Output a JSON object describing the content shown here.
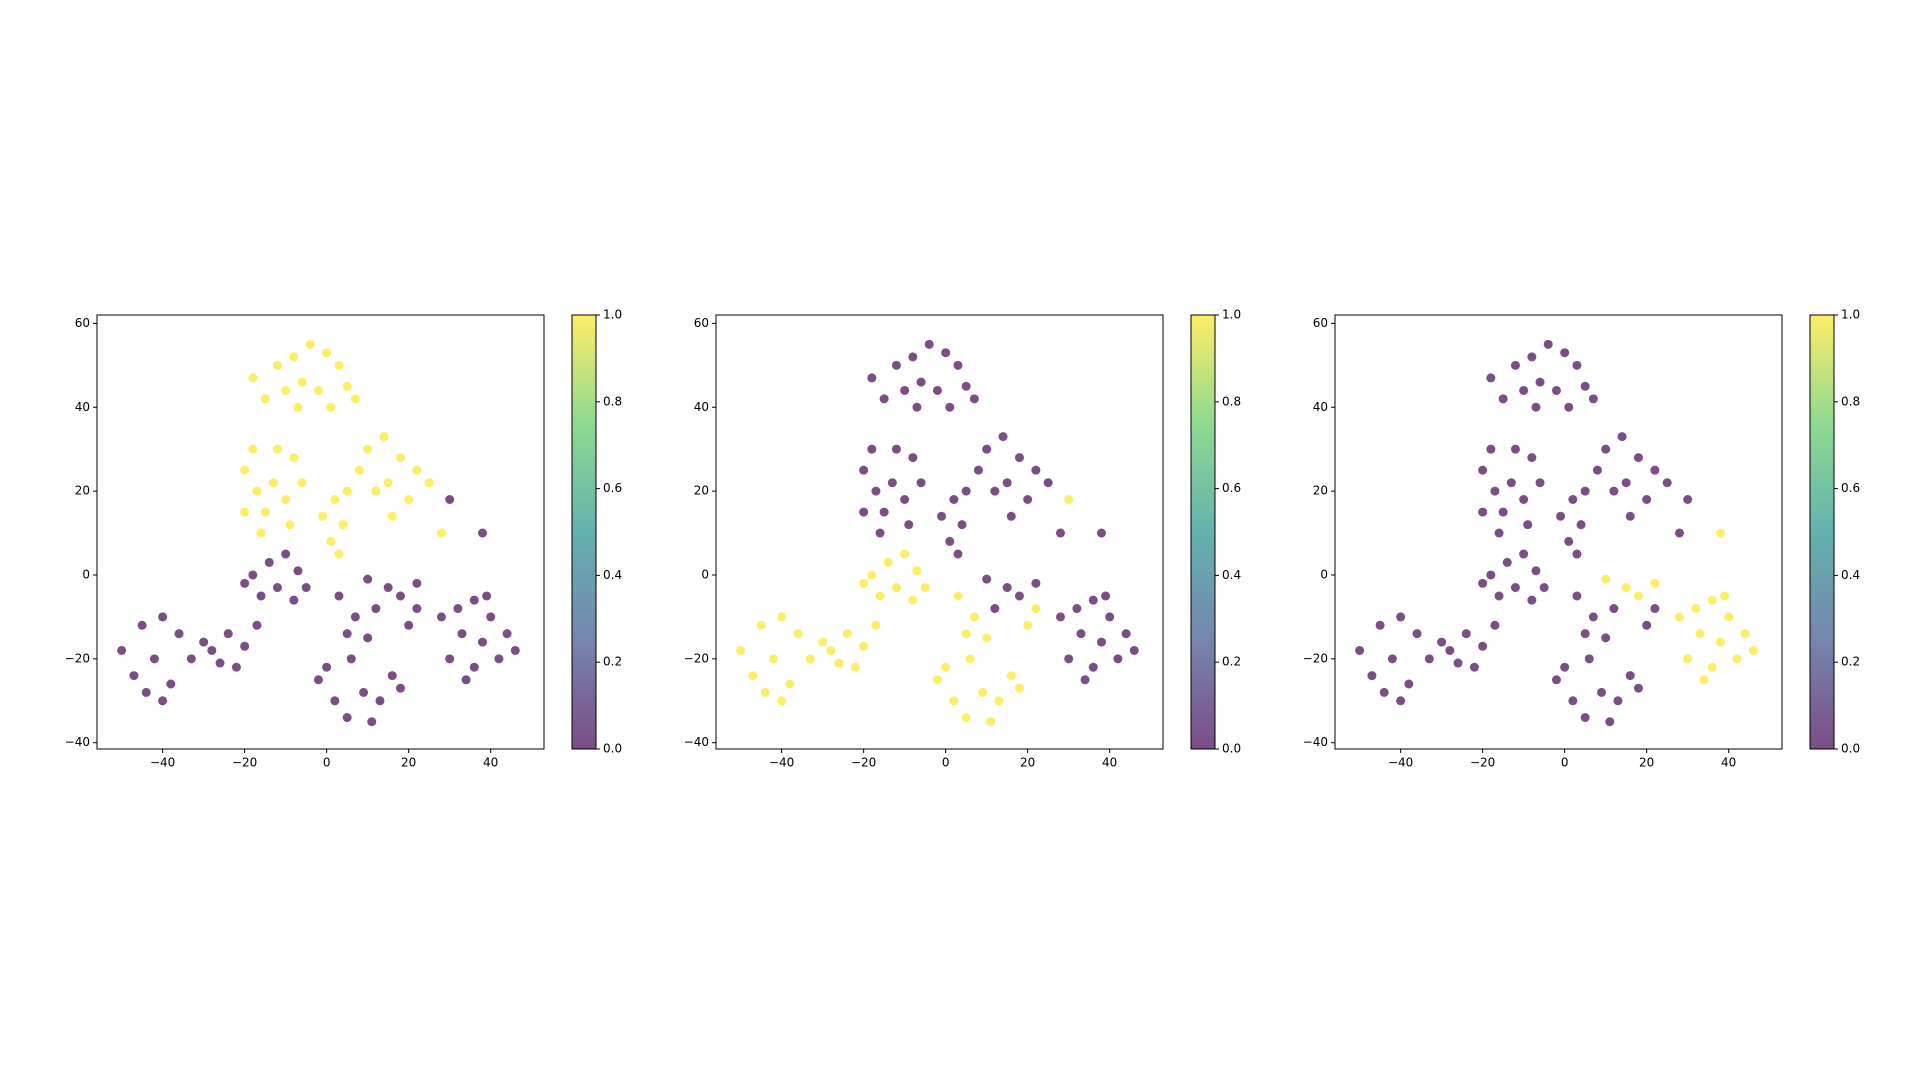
{
  "chart_data": [
    {
      "type": "scatter",
      "x": [
        -12,
        -8,
        -4,
        0,
        3,
        -6,
        -10,
        -15,
        -2,
        5,
        -18,
        1,
        -7,
        7,
        -20,
        -17,
        -13,
        -10,
        -15,
        -8,
        -18,
        -12,
        -20,
        -6,
        -9,
        -16,
        10,
        14,
        18,
        22,
        15,
        12,
        20,
        25,
        16,
        8,
        2,
        5,
        -1,
        4,
        1,
        3,
        -18,
        -14,
        -10,
        -7,
        -12,
        -16,
        -8,
        -20,
        -5,
        -50,
        -45,
        -40,
        -36,
        -42,
        -47,
        -38,
        -33,
        -44,
        -30,
        -40,
        -28,
        -24,
        -20,
        -17,
        -22,
        -26,
        -2,
        2,
        5,
        9,
        13,
        16,
        0,
        6,
        11,
        18,
        3,
        7,
        12,
        15,
        20,
        10,
        5,
        18,
        22,
        10,
        22,
        28,
        32,
        36,
        40,
        44,
        46,
        38,
        33,
        30,
        36,
        42,
        34,
        39,
        38,
        30,
        28
      ],
      "y": [
        50,
        52,
        55,
        53,
        50,
        46,
        44,
        42,
        44,
        45,
        47,
        40,
        40,
        42,
        25,
        20,
        22,
        18,
        15,
        28,
        30,
        30,
        15,
        22,
        12,
        10,
        30,
        33,
        28,
        25,
        22,
        20,
        18,
        22,
        14,
        25,
        18,
        20,
        14,
        12,
        8,
        5,
        0,
        3,
        5,
        1,
        -3,
        -5,
        -6,
        -2,
        -3,
        -18,
        -12,
        -10,
        -14,
        -20,
        -24,
        -26,
        -20,
        -28,
        -16,
        -30,
        -18,
        -14,
        -17,
        -12,
        -22,
        -21,
        -25,
        -30,
        -34,
        -28,
        -30,
        -24,
        -22,
        -20,
        -35,
        -27,
        -5,
        -10,
        -8,
        -3,
        -12,
        -15,
        -14,
        -5,
        -8,
        -1,
        -2,
        -10,
        -8,
        -6,
        -10,
        -14,
        -18,
        -16,
        -14,
        -20,
        -22,
        -20,
        -25,
        -5,
        10,
        18,
        10
      ],
      "c": [
        1,
        1,
        1,
        1,
        1,
        1,
        1,
        1,
        1,
        1,
        1,
        1,
        1,
        1,
        1,
        1,
        1,
        1,
        1,
        1,
        1,
        1,
        1,
        1,
        1,
        1,
        1,
        1,
        1,
        1,
        1,
        1,
        1,
        1,
        1,
        1,
        1,
        1,
        1,
        1,
        1,
        1,
        0,
        0,
        0,
        0,
        0,
        0,
        0,
        0,
        0,
        0,
        0,
        0,
        0,
        0,
        0,
        0,
        0,
        0,
        0,
        0,
        0,
        0,
        0,
        0,
        0,
        0,
        0,
        0,
        0,
        0,
        0,
        0,
        0,
        0,
        0,
        0,
        0,
        0,
        0,
        0,
        0,
        0,
        0,
        0,
        0,
        0,
        0,
        0,
        0,
        0,
        0,
        0,
        0,
        0,
        0,
        0,
        0,
        0,
        0,
        0,
        0,
        0,
        1
      ],
      "xlim": [
        -56,
        53
      ],
      "ylim": [
        -41.5,
        62
      ],
      "xticks": [
        {
          "value": -40,
          "label": "−40"
        },
        {
          "value": -20,
          "label": "−20"
        },
        0,
        20,
        40
      ],
      "yticks": [
        {
          "value": -40,
          "label": "−40"
        },
        {
          "value": -20,
          "label": "−20"
        },
        0,
        20,
        40,
        60
      ],
      "clim": [
        0,
        1
      ],
      "cticks": [
        {
          "value": 0,
          "label": "0.0"
        },
        {
          "value": 0.2,
          "label": "0.2"
        },
        {
          "value": 0.4,
          "label": "0.4"
        },
        {
          "value": 0.6,
          "label": "0.6"
        },
        {
          "value": 0.8,
          "label": "0.8"
        },
        {
          "value": 1,
          "label": "1.0"
        }
      ],
      "colormap": [
        "#440154",
        "#3b528b",
        "#21918c",
        "#5ec962",
        "#fde725"
      ],
      "alpha": 0.7
    },
    {
      "type": "scatter",
      "x": [
        -12,
        -8,
        -4,
        0,
        3,
        -6,
        -10,
        -15,
        -2,
        5,
        -18,
        1,
        -7,
        7,
        -20,
        -17,
        -13,
        -10,
        -15,
        -8,
        -18,
        -12,
        -20,
        -6,
        -9,
        -16,
        10,
        14,
        18,
        22,
        15,
        12,
        20,
        25,
        16,
        8,
        2,
        5,
        -1,
        4,
        1,
        3,
        -18,
        -14,
        -10,
        -7,
        -12,
        -16,
        -8,
        -20,
        -5,
        -50,
        -45,
        -40,
        -36,
        -42,
        -47,
        -38,
        -33,
        -44,
        -30,
        -40,
        -28,
        -24,
        -20,
        -17,
        -22,
        -26,
        -2,
        2,
        5,
        9,
        13,
        16,
        0,
        6,
        11,
        18,
        3,
        7,
        12,
        15,
        20,
        10,
        5,
        18,
        22,
        10,
        22,
        28,
        32,
        36,
        40,
        44,
        46,
        38,
        33,
        30,
        36,
        42,
        34,
        39,
        38,
        30,
        28
      ],
      "y": [
        50,
        52,
        55,
        53,
        50,
        46,
        44,
        42,
        44,
        45,
        47,
        40,
        40,
        42,
        25,
        20,
        22,
        18,
        15,
        28,
        30,
        30,
        15,
        22,
        12,
        10,
        30,
        33,
        28,
        25,
        22,
        20,
        18,
        22,
        14,
        25,
        18,
        20,
        14,
        12,
        8,
        5,
        0,
        3,
        5,
        1,
        -3,
        -5,
        -6,
        -2,
        -3,
        -18,
        -12,
        -10,
        -14,
        -20,
        -24,
        -26,
        -20,
        -28,
        -16,
        -30,
        -18,
        -14,
        -17,
        -12,
        -22,
        -21,
        -25,
        -30,
        -34,
        -28,
        -30,
        -24,
        -22,
        -20,
        -35,
        -27,
        -5,
        -10,
        -8,
        -3,
        -12,
        -15,
        -14,
        -5,
        -8,
        -1,
        -2,
        -10,
        -8,
        -6,
        -10,
        -14,
        -18,
        -16,
        -14,
        -20,
        -22,
        -20,
        -25,
        -5,
        10,
        18,
        10
      ],
      "c": [
        0,
        0,
        0,
        0,
        0,
        0,
        0,
        0,
        0,
        0,
        0,
        0,
        0,
        0,
        0,
        0,
        0,
        0,
        0,
        0,
        0,
        0,
        0,
        0,
        0,
        0,
        0,
        0,
        0,
        0,
        0,
        0,
        0,
        0,
        0,
        0,
        0,
        0,
        0,
        0,
        0,
        0,
        1,
        1,
        1,
        1,
        1,
        1,
        1,
        1,
        1,
        1,
        1,
        1,
        1,
        1,
        1,
        1,
        1,
        1,
        1,
        1,
        1,
        1,
        1,
        1,
        1,
        1,
        1,
        1,
        1,
        1,
        1,
        1,
        1,
        1,
        1,
        1,
        1,
        1,
        0,
        0,
        1,
        1,
        1,
        0,
        1,
        0,
        0,
        0,
        0,
        0,
        0,
        0,
        0,
        0,
        0,
        0,
        0,
        0,
        0,
        0,
        0,
        1,
        0
      ],
      "xlim": [
        -56,
        53
      ],
      "ylim": [
        -41.5,
        62
      ],
      "xticks": [
        {
          "value": -40,
          "label": "−40"
        },
        {
          "value": -20,
          "label": "−20"
        },
        0,
        20,
        40
      ],
      "yticks": [
        {
          "value": -40,
          "label": "−40"
        },
        {
          "value": -20,
          "label": "−20"
        },
        0,
        20,
        40,
        60
      ],
      "clim": [
        0,
        1
      ],
      "cticks": [
        {
          "value": 0,
          "label": "0.0"
        },
        {
          "value": 0.2,
          "label": "0.2"
        },
        {
          "value": 0.4,
          "label": "0.4"
        },
        {
          "value": 0.6,
          "label": "0.6"
        },
        {
          "value": 0.8,
          "label": "0.8"
        },
        {
          "value": 1,
          "label": "1.0"
        }
      ],
      "colormap": [
        "#440154",
        "#3b528b",
        "#21918c",
        "#5ec962",
        "#fde725"
      ],
      "alpha": 0.7
    },
    {
      "type": "scatter",
      "x": [
        -12,
        -8,
        -4,
        0,
        3,
        -6,
        -10,
        -15,
        -2,
        5,
        -18,
        1,
        -7,
        7,
        -20,
        -17,
        -13,
        -10,
        -15,
        -8,
        -18,
        -12,
        -20,
        -6,
        -9,
        -16,
        10,
        14,
        18,
        22,
        15,
        12,
        20,
        25,
        16,
        8,
        2,
        5,
        -1,
        4,
        1,
        3,
        -18,
        -14,
        -10,
        -7,
        -12,
        -16,
        -8,
        -20,
        -5,
        -50,
        -45,
        -40,
        -36,
        -42,
        -47,
        -38,
        -33,
        -44,
        -30,
        -40,
        -28,
        -24,
        -20,
        -17,
        -22,
        -26,
        -2,
        2,
        5,
        9,
        13,
        16,
        0,
        6,
        11,
        18,
        3,
        7,
        12,
        15,
        20,
        10,
        5,
        18,
        22,
        10,
        22,
        28,
        32,
        36,
        40,
        44,
        46,
        38,
        33,
        30,
        36,
        42,
        34,
        39,
        38,
        30,
        28
      ],
      "y": [
        50,
        52,
        55,
        53,
        50,
        46,
        44,
        42,
        44,
        45,
        47,
        40,
        40,
        42,
        25,
        20,
        22,
        18,
        15,
        28,
        30,
        30,
        15,
        22,
        12,
        10,
        30,
        33,
        28,
        25,
        22,
        20,
        18,
        22,
        14,
        25,
        18,
        20,
        14,
        12,
        8,
        5,
        0,
        3,
        5,
        1,
        -3,
        -5,
        -6,
        -2,
        -3,
        -18,
        -12,
        -10,
        -14,
        -20,
        -24,
        -26,
        -20,
        -28,
        -16,
        -30,
        -18,
        -14,
        -17,
        -12,
        -22,
        -21,
        -25,
        -30,
        -34,
        -28,
        -30,
        -24,
        -22,
        -20,
        -35,
        -27,
        -5,
        -10,
        -8,
        -3,
        -12,
        -15,
        -14,
        -5,
        -8,
        -1,
        -2,
        -10,
        -8,
        -6,
        -10,
        -14,
        -18,
        -16,
        -14,
        -20,
        -22,
        -20,
        -25,
        -5,
        10,
        18,
        10
      ],
      "c": [
        0,
        0,
        0,
        0,
        0,
        0,
        0,
        0,
        0,
        0,
        0,
        0,
        0,
        0,
        0,
        0,
        0,
        0,
        0,
        0,
        0,
        0,
        0,
        0,
        0,
        0,
        0,
        0,
        0,
        0,
        0,
        0,
        0,
        0,
        0,
        0,
        0,
        0,
        0,
        0,
        0,
        0,
        0,
        0,
        0,
        0,
        0,
        0,
        0,
        0,
        0,
        0,
        0,
        0,
        0,
        0,
        0,
        0,
        0,
        0,
        0,
        0,
        0,
        0,
        0,
        0,
        0,
        0,
        0,
        0,
        0,
        0,
        0,
        0,
        0,
        0,
        0,
        0,
        0,
        0,
        0,
        1,
        0,
        0,
        0,
        1,
        0,
        1,
        1,
        1,
        1,
        1,
        1,
        1,
        1,
        1,
        1,
        1,
        1,
        1,
        1,
        1,
        1,
        0,
        0
      ],
      "xlim": [
        -56,
        53
      ],
      "ylim": [
        -41.5,
        62
      ],
      "xticks": [
        {
          "value": -40,
          "label": "−40"
        },
        {
          "value": -20,
          "label": "−20"
        },
        0,
        20,
        40
      ],
      "yticks": [
        {
          "value": -40,
          "label": "−40"
        },
        {
          "value": -20,
          "label": "−20"
        },
        0,
        20,
        40,
        60
      ],
      "clim": [
        0,
        1
      ],
      "cticks": [
        {
          "value": 0,
          "label": "0.0"
        },
        {
          "value": 0.2,
          "label": "0.2"
        },
        {
          "value": 0.4,
          "label": "0.4"
        },
        {
          "value": 0.6,
          "label": "0.6"
        },
        {
          "value": 0.8,
          "label": "0.8"
        },
        {
          "value": 1,
          "label": "1.0"
        }
      ],
      "colormap": [
        "#440154",
        "#3b528b",
        "#21918c",
        "#5ec962",
        "#fde725"
      ],
      "alpha": 0.7
    }
  ]
}
